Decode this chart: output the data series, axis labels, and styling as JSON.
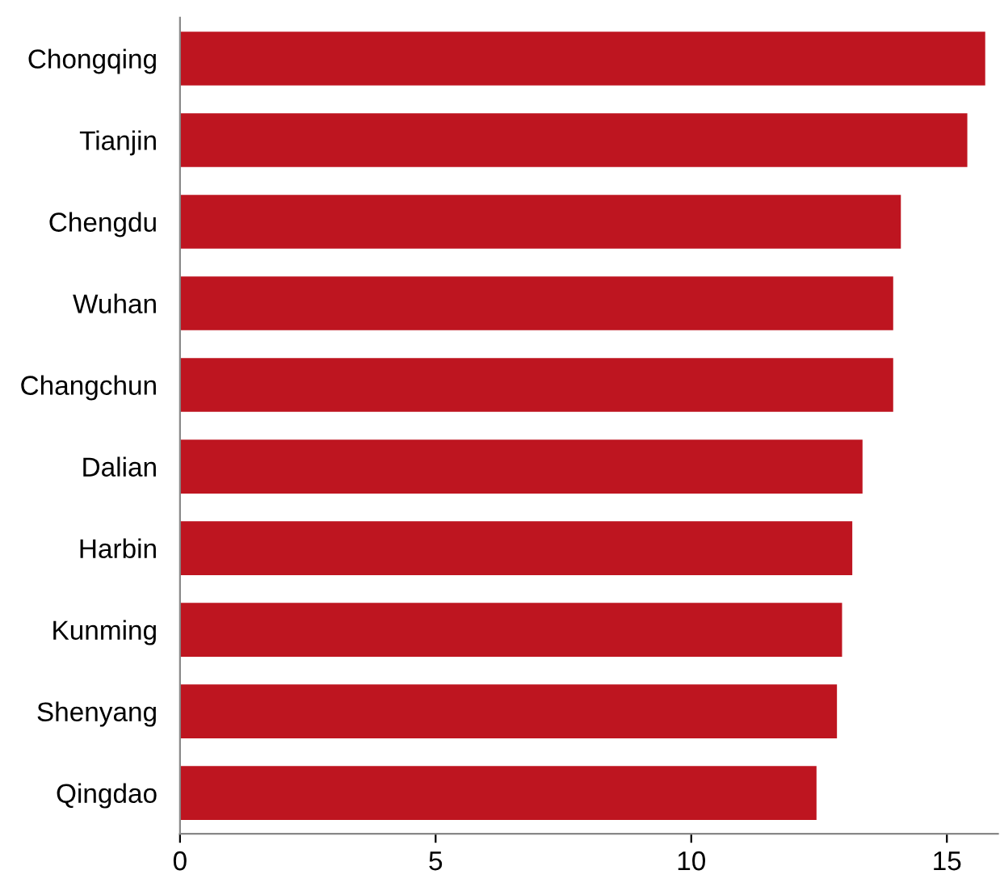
{
  "chart_data": {
    "type": "bar",
    "orientation": "horizontal",
    "categories": [
      "Chongqing",
      "Tianjin",
      "Chengdu",
      "Wuhan",
      "Changchun",
      "Dalian",
      "Harbin",
      "Kunming",
      "Shenyang",
      "Qingdao"
    ],
    "values": [
      15.75,
      15.4,
      14.1,
      13.95,
      13.95,
      13.35,
      13.15,
      12.95,
      12.85,
      12.45
    ],
    "color": "#be1520",
    "xlim": [
      0,
      16
    ],
    "xticks": [
      0,
      5,
      10,
      15
    ],
    "grid": false,
    "legend": false
  }
}
